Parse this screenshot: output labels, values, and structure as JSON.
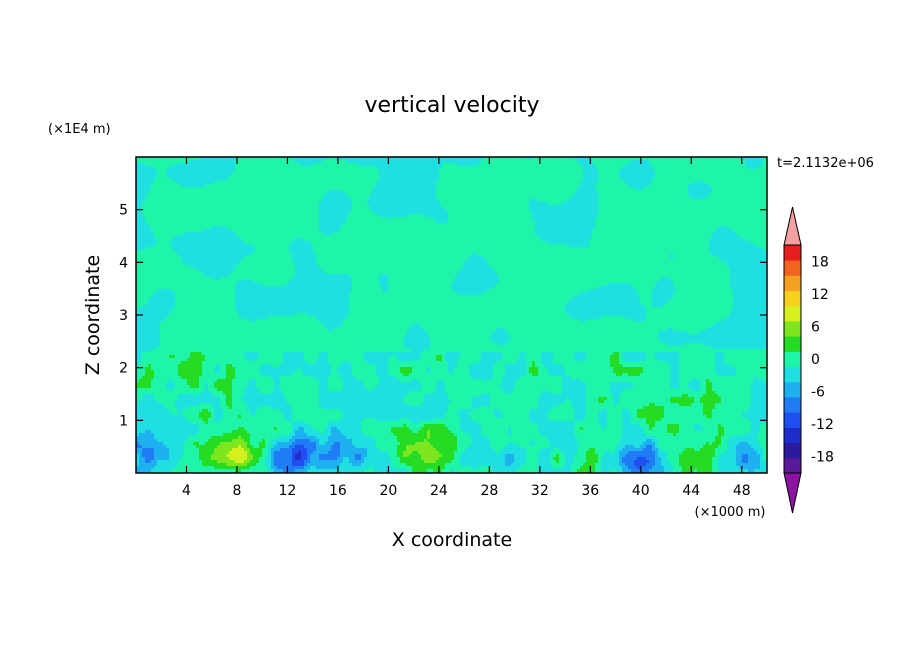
{
  "chart_data": {
    "type": "heatmap",
    "title": "vertical velocity",
    "xlabel": "X coordinate",
    "ylabel": "Z coordinate",
    "x_unit": "(×1000 m)",
    "y_unit": "(×1E4 m)",
    "time_label": "t=2.1132e+06",
    "xlim": [
      0,
      50
    ],
    "ylim": [
      0,
      6
    ],
    "x_ticks": [
      4,
      8,
      12,
      16,
      20,
      24,
      28,
      32,
      36,
      40,
      44,
      48
    ],
    "y_ticks": [
      1,
      2,
      3,
      4,
      5
    ],
    "colorbar": {
      "ticks": [
        18,
        12,
        6,
        0,
        -6,
        -12,
        -18
      ],
      "levels": [
        -21,
        -18,
        -15,
        -12,
        -9,
        -6,
        -3,
        0,
        3,
        6,
        9,
        12,
        15,
        18,
        21
      ],
      "colors": [
        "#5a189a",
        "#2a1aa0",
        "#1f2ec8",
        "#1f4ff0",
        "#1f7cf5",
        "#1fb0f0",
        "#1fe0e0",
        "#1ef5a8",
        "#23dc23",
        "#7ee61e",
        "#d6f01e",
        "#f5d21e",
        "#f5a01e",
        "#f0641e",
        "#e61e1e"
      ],
      "over_color": "#f2a0a0",
      "under_color": "#8c14a0"
    },
    "background_value": 0.5,
    "features": [
      {
        "kind": "updraft",
        "x": 8.0,
        "z": 0.35,
        "peak": 7.5
      },
      {
        "kind": "updraft",
        "x": 23.0,
        "z": 0.4,
        "peak": 7.0
      },
      {
        "kind": "updraft",
        "x": 44.5,
        "z": 0.3,
        "peak": 5.0
      },
      {
        "kind": "updraft",
        "x": 36.5,
        "z": 0.2,
        "peak": 3.0
      },
      {
        "kind": "downdraft",
        "x": 1.5,
        "z": 0.4,
        "peak": -6.0
      },
      {
        "kind": "downdraft",
        "x": 12.5,
        "z": 0.3,
        "peak": -12.0
      },
      {
        "kind": "downdraft",
        "x": 17.0,
        "z": 0.4,
        "peak": -6.0
      },
      {
        "kind": "downdraft",
        "x": 40.0,
        "z": 0.25,
        "peak": -10.0
      },
      {
        "kind": "downdraft",
        "x": 48.5,
        "z": 0.3,
        "peak": -5.0
      },
      {
        "kind": "downdraft",
        "x": 29.0,
        "z": 0.2,
        "peak": -3.0
      }
    ]
  }
}
